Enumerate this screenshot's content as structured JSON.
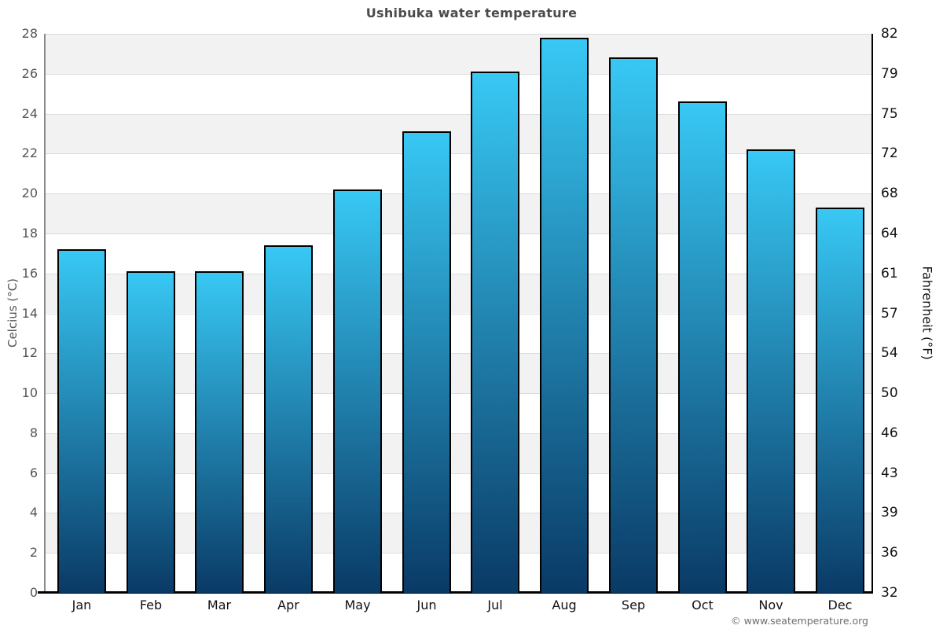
{
  "chart_data": {
    "type": "bar",
    "title": "Ushibuka water temperature",
    "categories": [
      "Jan",
      "Feb",
      "Mar",
      "Apr",
      "May",
      "Jun",
      "Jul",
      "Aug",
      "Sep",
      "Oct",
      "Nov",
      "Dec"
    ],
    "values": [
      17.2,
      16.1,
      16.1,
      17.4,
      20.2,
      23.1,
      26.1,
      27.8,
      26.8,
      24.6,
      22.2,
      19.3
    ],
    "ylabel_left": "Celcius (°C)",
    "ylabel_right": "Fahrenheit (°F)",
    "ylim": [
      0,
      28
    ],
    "yticks_celsius": [
      0,
      2,
      4,
      6,
      8,
      10,
      12,
      14,
      16,
      18,
      20,
      22,
      24,
      26,
      28
    ],
    "yticks_fahrenheit": [
      32,
      36,
      39,
      43,
      46,
      50,
      54,
      57,
      61,
      64,
      68,
      72,
      75,
      79,
      82
    ],
    "grid": true,
    "legend": "none"
  },
  "footer": {
    "credit": "© www.seatemperature.org"
  },
  "colors": {
    "bar_gradient_top": "#38c8f4",
    "bar_gradient_bottom": "#0a3a66",
    "bar_border": "#000000",
    "band_gray": "#f2f2f2",
    "band_white": "#ffffff",
    "gridline": "#dcdcdc",
    "left_axis_line": "#8a8a8a",
    "right_axis_line": "#000000",
    "bottom_axis_line": "#000000",
    "title_text": "#4a4a4a",
    "celsius_text": "#555555",
    "fahrenheit_text": "#111111",
    "month_text": "#111111",
    "credit_text": "#6e6e6e"
  }
}
